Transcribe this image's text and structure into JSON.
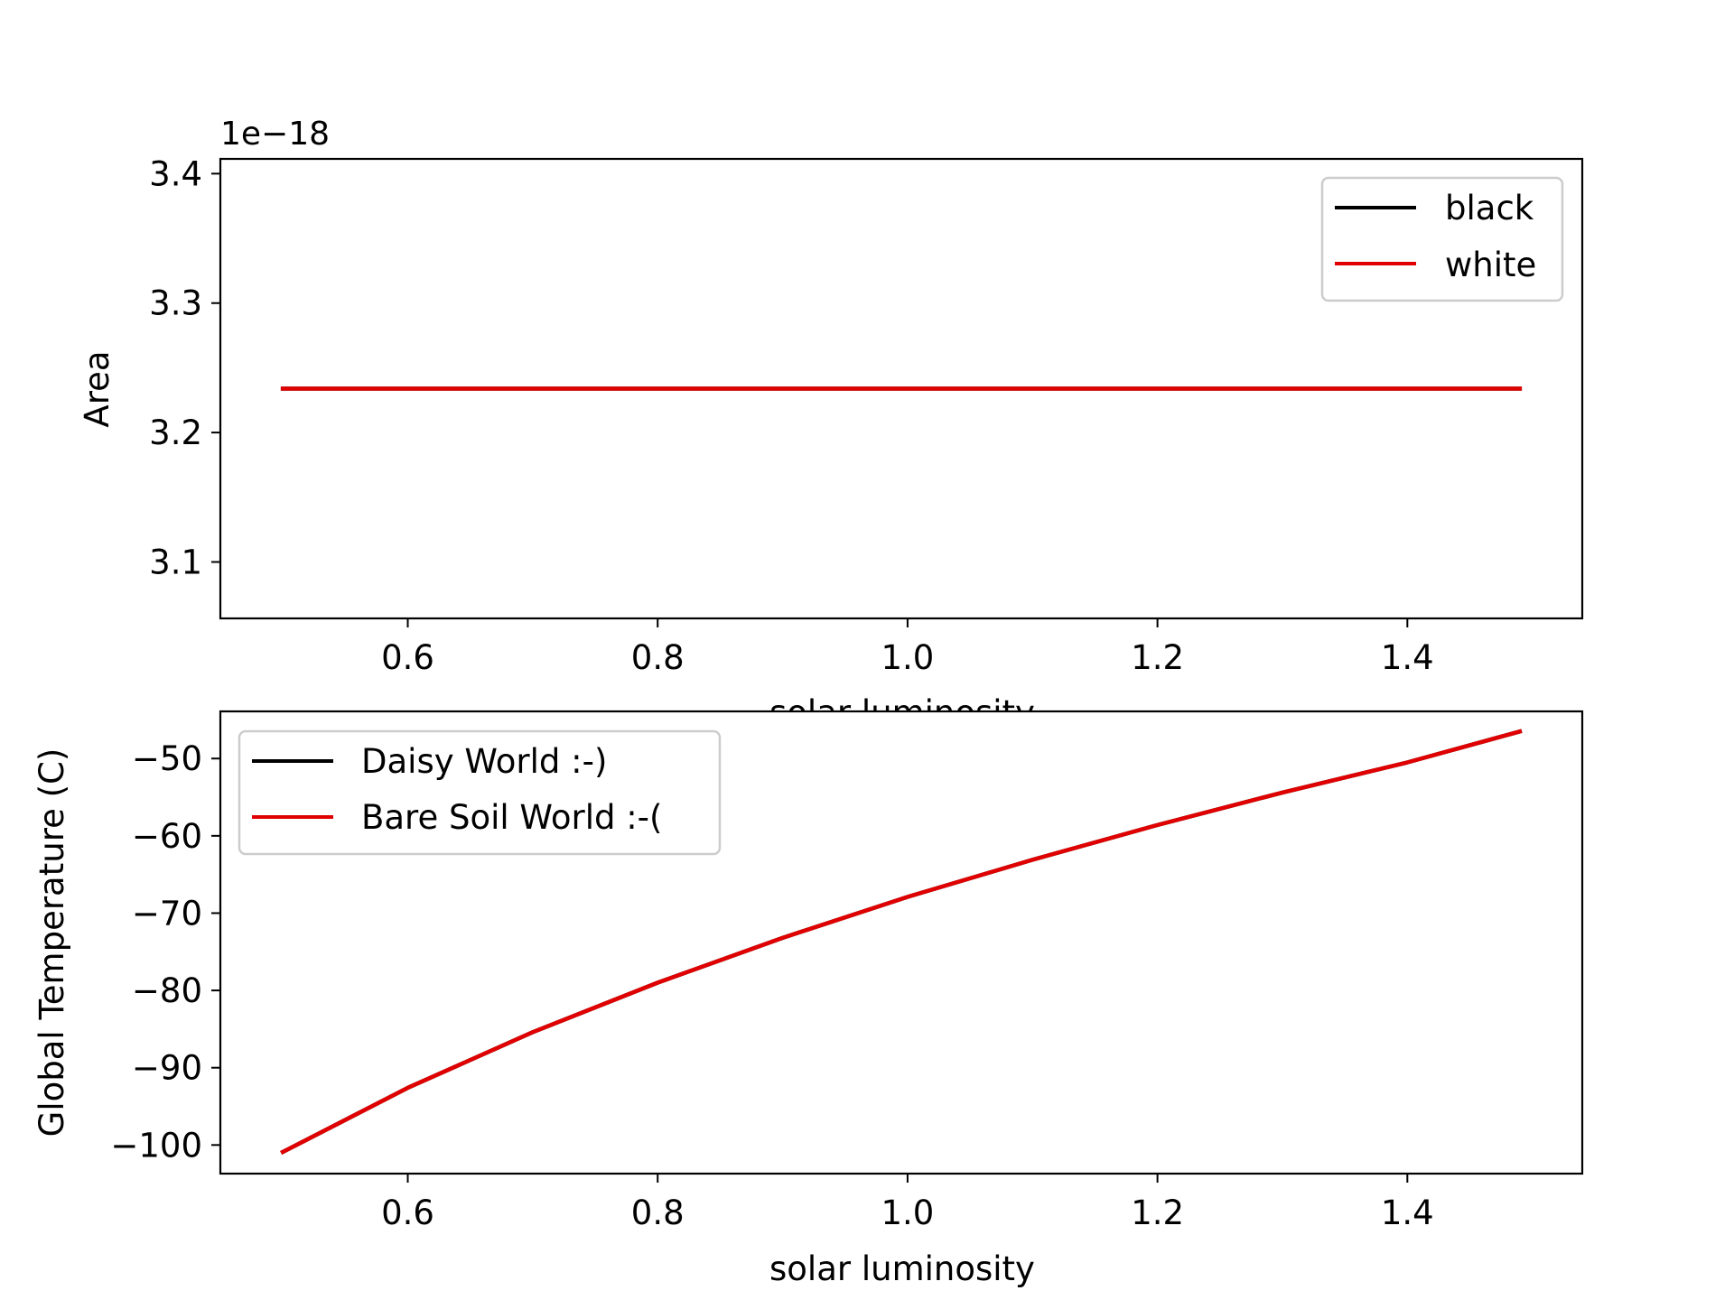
{
  "chart_data": [
    {
      "type": "line",
      "title": "",
      "xlabel": "solar luminosity",
      "ylabel": "Area",
      "offset_text": "1e−18",
      "xlim": [
        0.45,
        1.54
      ],
      "ylim": [
        3.0564,
        3.4114
      ],
      "xticks": [
        0.6,
        0.8,
        1.0,
        1.2,
        1.4
      ],
      "xtick_labels": [
        "0.6",
        "0.8",
        "1.0",
        "1.2",
        "1.4"
      ],
      "yticks": [
        3.1,
        3.2,
        3.3,
        3.4
      ],
      "ytick_labels": [
        "3.1",
        "3.2",
        "3.3",
        "3.4"
      ],
      "grid": false,
      "legend_position": "upper right",
      "series": [
        {
          "name": "black",
          "color": "#000000",
          "x": [
            0.5,
            1.49
          ],
          "y": [
            3.2339,
            3.2339
          ]
        },
        {
          "name": "white",
          "color": "#e00000",
          "x": [
            0.5,
            1.49
          ],
          "y": [
            3.2339,
            3.2339
          ]
        }
      ]
    },
    {
      "type": "line",
      "title": "",
      "xlabel": "solar luminosity",
      "ylabel": "Global Temperature (C)",
      "xlim": [
        0.45,
        1.54
      ],
      "ylim": [
        -103.7,
        -43.9
      ],
      "xticks": [
        0.6,
        0.8,
        1.0,
        1.2,
        1.4
      ],
      "xtick_labels": [
        "0.6",
        "0.8",
        "1.0",
        "1.2",
        "1.4"
      ],
      "yticks": [
        -100,
        -90,
        -80,
        -70,
        -60,
        -50
      ],
      "ytick_labels": [
        "−100",
        "−90",
        "−80",
        "−70",
        "−60",
        "−50"
      ],
      "grid": false,
      "legend_position": "upper left",
      "series": [
        {
          "name": "Daisy World :-)",
          "color": "#000000",
          "x": [
            0.5,
            0.6,
            0.7,
            0.8,
            0.9,
            1.0,
            1.1,
            1.2,
            1.3,
            1.4,
            1.49
          ],
          "y": [
            -100.9,
            -92.6,
            -85.4,
            -79.0,
            -73.2,
            -67.9,
            -63.1,
            -58.6,
            -54.4,
            -50.5,
            -46.5
          ]
        },
        {
          "name": "Bare Soil World :-(",
          "color": "#e00000",
          "x": [
            0.5,
            0.6,
            0.7,
            0.8,
            0.9,
            1.0,
            1.1,
            1.2,
            1.3,
            1.4,
            1.49
          ],
          "y": [
            -100.9,
            -92.6,
            -85.4,
            -79.0,
            -73.2,
            -67.9,
            -63.1,
            -58.6,
            -54.4,
            -50.5,
            -46.5
          ]
        }
      ]
    }
  ]
}
